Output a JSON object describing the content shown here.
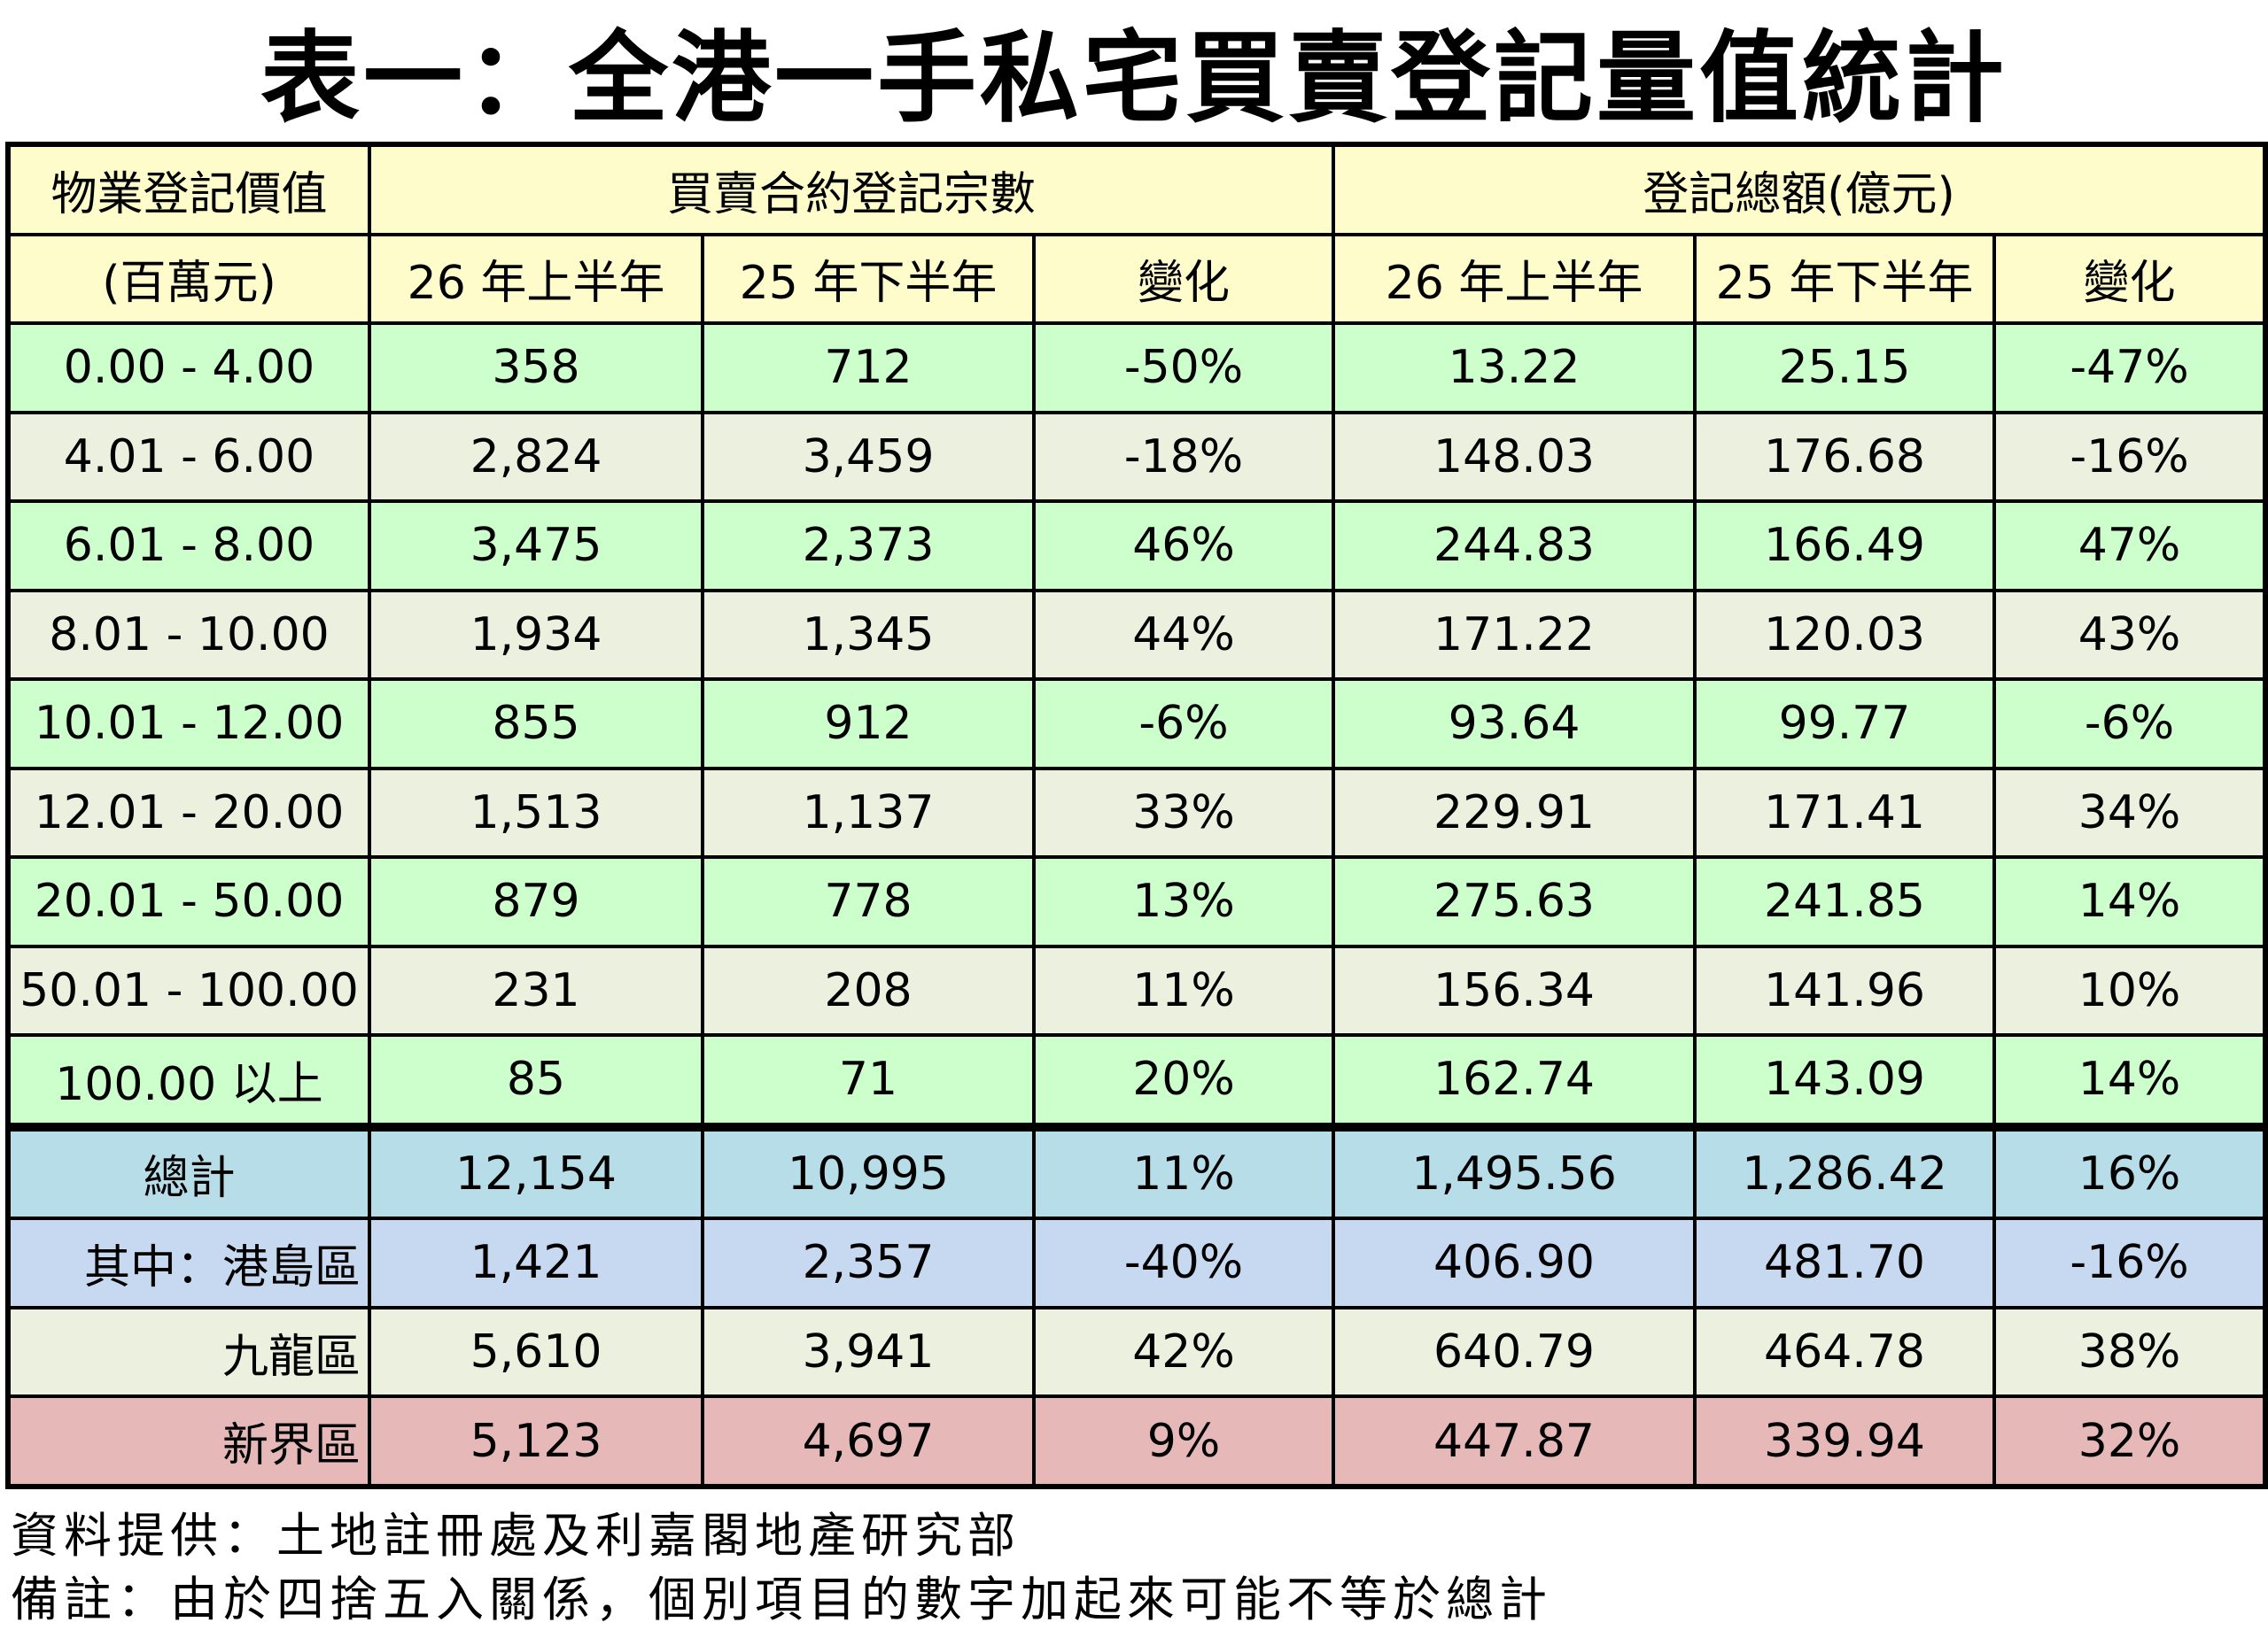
{
  "title": "表一：全港一手私宅買賣登記量值統計",
  "header": {
    "col_label_line1": "物業登記價值",
    "col_label_line2": "(百萬元)",
    "group_count": "買賣合約登記宗數",
    "group_amount": "登記總額(億元)",
    "period_current": "26 年上半年",
    "period_previous": "25 年下半年",
    "change": "變化"
  },
  "rows": [
    {
      "label": "0.00  -  4.00",
      "c1": "358",
      "c2": "712",
      "c3": "-50%",
      "a1": "13.22",
      "a2": "25.15",
      "a3": "-47%"
    },
    {
      "label": "4.01  -  6.00",
      "c1": "2,824",
      "c2": "3,459",
      "c3": "-18%",
      "a1": "148.03",
      "a2": "176.68",
      "a3": "-16%"
    },
    {
      "label": "6.01  -  8.00",
      "c1": "3,475",
      "c2": "2,373",
      "c3": "46%",
      "a1": "244.83",
      "a2": "166.49",
      "a3": "47%"
    },
    {
      "label": "8.01  -  10.00",
      "c1": "1,934",
      "c2": "1,345",
      "c3": "44%",
      "a1": "171.22",
      "a2": "120.03",
      "a3": "43%"
    },
    {
      "label": "10.01  -  12.00",
      "c1": "855",
      "c2": "912",
      "c3": "-6%",
      "a1": "93.64",
      "a2": "99.77",
      "a3": "-6%"
    },
    {
      "label": "12.01  -  20.00",
      "c1": "1,513",
      "c2": "1,137",
      "c3": "33%",
      "a1": "229.91",
      "a2": "171.41",
      "a3": "34%"
    },
    {
      "label": "20.01  -  50.00",
      "c1": "879",
      "c2": "778",
      "c3": "13%",
      "a1": "275.63",
      "a2": "241.85",
      "a3": "14%"
    },
    {
      "label": "50.01  -  100.00",
      "c1": "231",
      "c2": "208",
      "c3": "11%",
      "a1": "156.34",
      "a2": "141.96",
      "a3": "10%"
    },
    {
      "label": "100.00  以上",
      "c1": "85",
      "c2": "71",
      "c3": "20%",
      "a1": "162.74",
      "a2": "143.09",
      "a3": "14%"
    }
  ],
  "total": {
    "label": "總計",
    "c1": "12,154",
    "c2": "10,995",
    "c3": "11%",
    "a1": "1,495.56",
    "a2": "1,286.42",
    "a3": "16%"
  },
  "regions": [
    {
      "label": "其中：港島區",
      "c1": "1,421",
      "c2": "2,357",
      "c3": "-40%",
      "a1": "406.90",
      "a2": "481.70",
      "a3": "-16%"
    },
    {
      "label": "九龍區",
      "c1": "5,610",
      "c2": "3,941",
      "c3": "42%",
      "a1": "640.79",
      "a2": "464.78",
      "a3": "38%"
    },
    {
      "label": "新界區",
      "c1": "5,123",
      "c2": "4,697",
      "c3": "9%",
      "a1": "447.87",
      "a2": "339.94",
      "a3": "32%"
    }
  ],
  "footer": {
    "source": "資料提供：土地註冊處及利嘉閣地產研究部",
    "note": "備註：由於四捨五入關係，個別項目的數字加起來可能不等於總計"
  },
  "colors": {
    "header_bg": "#fffccc",
    "row_green": "#ccffcc",
    "row_beige": "#ebf1de",
    "total_bg": "#b7dde8",
    "hk_island_bg": "#c6d9f1",
    "kowloon_bg": "#ebf1de",
    "nt_bg": "#e6b9b8"
  }
}
